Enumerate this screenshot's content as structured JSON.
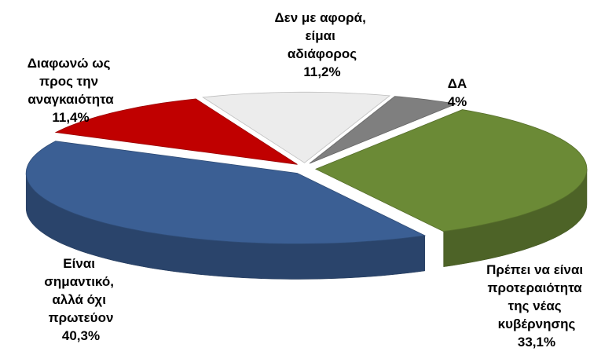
{
  "chart_data": {
    "type": "pie3d",
    "categories": [
      "Δεν με αφορά, είμαι αδιάφορος",
      "ΔΑ",
      "Πρέπει να είναι προτεραιότητα της νέας κυβέρνησης",
      "Είναι σημαντικό, αλλά όχι πρωτεύον",
      "Διαφωνώ ως προς την αναγκαιότητα"
    ],
    "values": [
      11.2,
      4,
      33.1,
      40.3,
      11.4
    ],
    "value_labels": [
      "11,2%",
      "4%",
      "33,1%",
      "40,3%",
      "11,4%"
    ],
    "colors": [
      "#ececec",
      "#7f7f7f",
      "#6b8a36",
      "#3b5f94",
      "#c00000"
    ]
  }
}
